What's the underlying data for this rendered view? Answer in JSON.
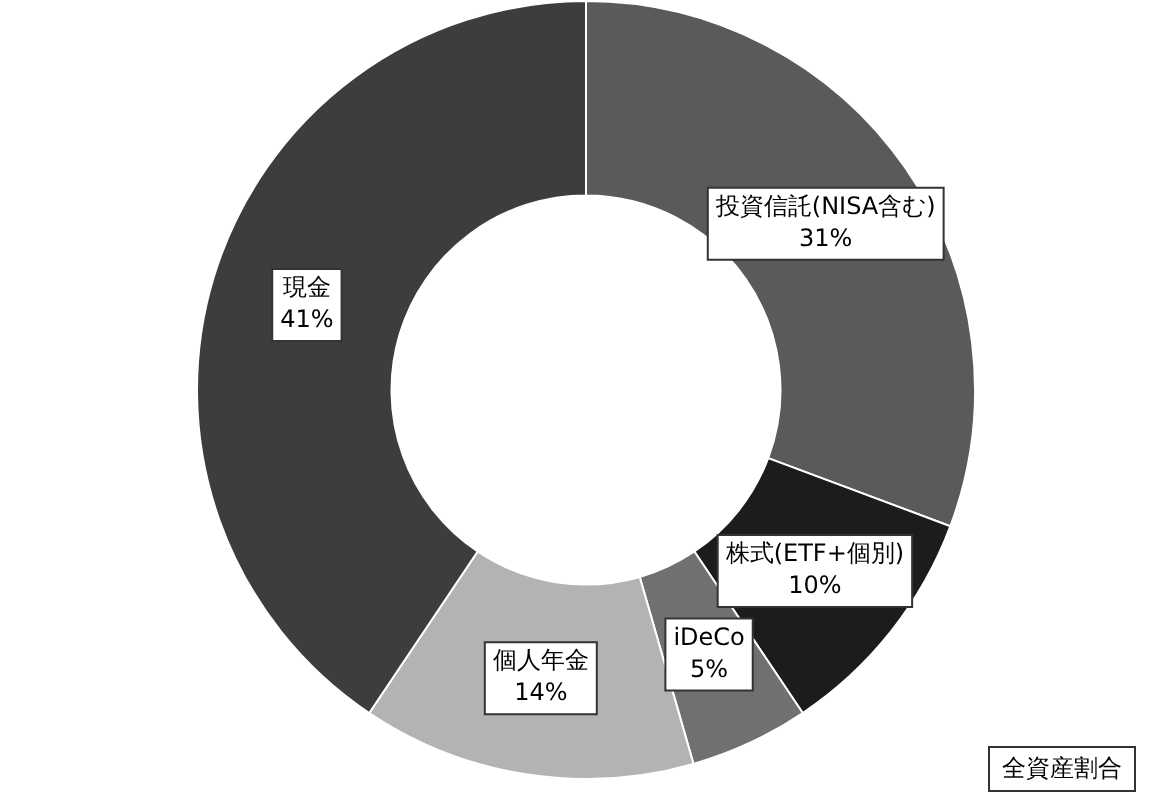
{
  "chart_data": {
    "type": "donut",
    "categories": [
      "投資信託(NISA含む)",
      "株式(ETF+個別)",
      "iDeCo",
      "個人年金",
      "現金"
    ],
    "values": [
      31,
      10,
      5,
      14,
      41
    ],
    "value_labels": [
      "31%",
      "10%",
      "5%",
      "14%",
      "41%"
    ],
    "colors": [
      "#5a5a5a",
      "#1c1c1c",
      "#707070",
      "#b3b3b3",
      "#3d3d3d"
    ],
    "annotations": [
      "全資産割合"
    ],
    "legend": false
  }
}
